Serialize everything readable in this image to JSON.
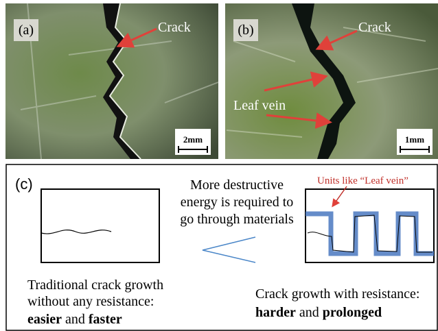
{
  "panel_a": {
    "label": "(a)",
    "crack_label": "Crack",
    "scale_bar": "2mm"
  },
  "panel_b": {
    "label": "(b)",
    "crack_label": "Crack",
    "vein_label": "Leaf vein",
    "scale_bar": "1mm"
  },
  "panel_c": {
    "label": "(c)",
    "center_text": [
      "More destructive",
      "energy is required to",
      "go through materials"
    ],
    "units_label": "Units like “Leaf vein”",
    "left_caption": {
      "line1": "Traditional crack growth",
      "line2": "without any resistance:",
      "emph1": "easier",
      "joiner": "and",
      "emph2": "faster"
    },
    "right_caption": {
      "line1": "Crack growth with resistance:",
      "emph1": "harder",
      "joiner": "and",
      "emph2": "prolonged"
    }
  }
}
